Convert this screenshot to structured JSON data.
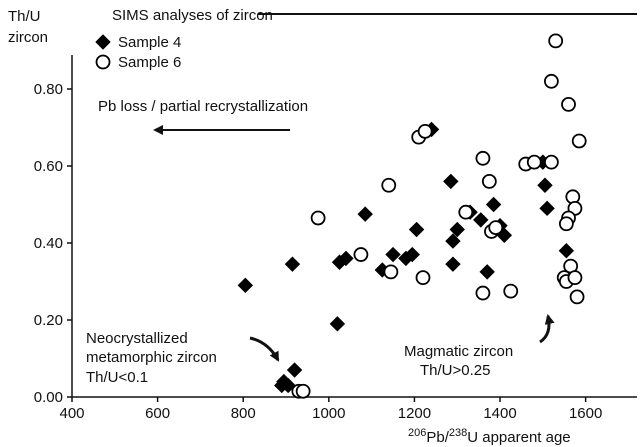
{
  "chart_data": {
    "type": "scatter",
    "y_label_lines": [
      "Th/U",
      "zircon"
    ],
    "x_label_parts": [
      "206",
      "Pb/",
      "238",
      "U apparent age"
    ],
    "legend_title": "SIMS analyses of zircon",
    "annotations": {
      "pb_loss": "Pb  loss / partial recrystallization",
      "neo": [
        "Neocrystallized",
        "metamorphic zircon",
        "Th/U<0.1"
      ],
      "magmatic": [
        "Magmatic zircon",
        "Th/U>0.25"
      ]
    },
    "xlim": [
      400,
      1720
    ],
    "ylim": [
      0,
      1.0
    ],
    "xticks": [
      400,
      600,
      800,
      1000,
      1200,
      1400,
      1600
    ],
    "yticks": [
      {
        "value": 0,
        "label": "0.00"
      },
      {
        "value": 0.2,
        "label": "0.20"
      },
      {
        "value": 0.4,
        "label": "0.40"
      },
      {
        "value": 0.6,
        "label": "0.60"
      },
      {
        "value": 0.8,
        "label": "0.80"
      }
    ],
    "series": [
      {
        "name": "Sample 4",
        "marker": "diamond",
        "color": "#000000",
        "fill": "#000000",
        "x": [
          805,
          915,
          1085,
          1020,
          1025,
          1040,
          1125,
          1150,
          1180,
          1195,
          1205,
          1240,
          1285,
          1290,
          1290,
          1300,
          1330,
          1355,
          1370,
          1385,
          1400,
          1410,
          1500,
          1505,
          1510,
          1555,
          895,
          905,
          920,
          890
        ],
        "values": [
          0.29,
          0.345,
          0.475,
          0.19,
          0.35,
          0.36,
          0.33,
          0.37,
          0.36,
          0.37,
          0.435,
          0.695,
          0.56,
          0.345,
          0.405,
          0.435,
          0.48,
          0.46,
          0.325,
          0.5,
          0.445,
          0.42,
          0.61,
          0.55,
          0.49,
          0.38,
          0.04,
          0.03,
          0.07,
          0.03
        ]
      },
      {
        "name": "Sample 6",
        "marker": "circle",
        "color": "#000000",
        "fill": "#ffffff",
        "x": [
          1530,
          1520,
          1560,
          1585,
          1210,
          1225,
          1140,
          1360,
          1460,
          1480,
          1520,
          975,
          1075,
          1145,
          1220,
          1320,
          1375,
          1380,
          1360,
          1425,
          1390,
          1570,
          1575,
          1560,
          1555,
          1565,
          1550,
          1555,
          1575,
          1580,
          930,
          940
        ],
        "values": [
          0.925,
          0.82,
          0.76,
          0.665,
          0.675,
          0.69,
          0.55,
          0.62,
          0.605,
          0.61,
          0.61,
          0.465,
          0.37,
          0.325,
          0.31,
          0.48,
          0.56,
          0.43,
          0.27,
          0.275,
          0.44,
          0.52,
          0.49,
          0.465,
          0.45,
          0.34,
          0.31,
          0.3,
          0.31,
          0.26,
          0.015,
          0.015
        ]
      }
    ]
  }
}
